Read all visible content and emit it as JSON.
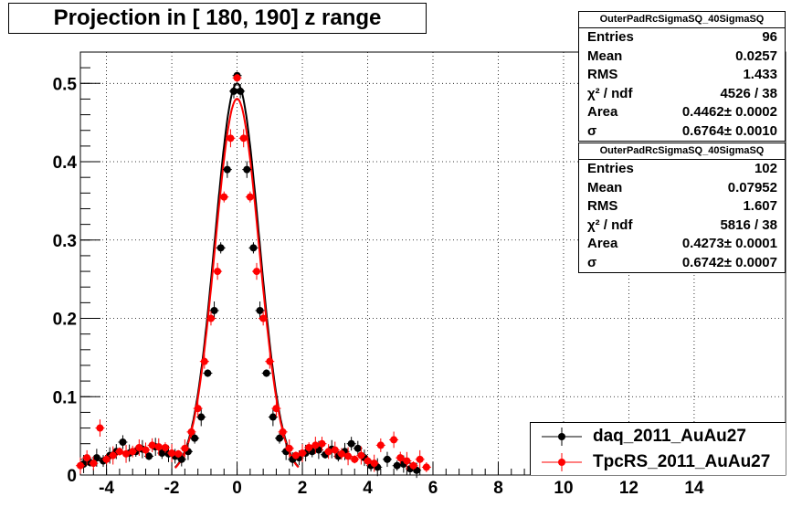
{
  "chart_data": {
    "type": "scatter",
    "title": "Projection in [ 180, 190] z range",
    "xlabel": "",
    "ylabel": "",
    "xlim": [
      -4.8,
      16.8
    ],
    "ylim": [
      0,
      0.54
    ],
    "x_ticks": [
      "-4",
      "-2",
      "0",
      "2",
      "4",
      "6",
      "8",
      "10",
      "12",
      "14"
    ],
    "y_ticks": [
      "0",
      "0.1",
      "0.2",
      "0.3",
      "0.4",
      "0.5"
    ],
    "grid": true,
    "legend_position": "bottom-right",
    "series": [
      {
        "name": "daq_2011_AuAu27",
        "color": "#000000",
        "marker": "circle",
        "fit": {
          "area": 0.4462,
          "sigma": 0.6764
        },
        "points": [
          [
            -4.7,
            0.014
          ],
          [
            -4.5,
            0.016
          ],
          [
            -4.3,
            0.022
          ],
          [
            -4.1,
            0.018
          ],
          [
            -3.9,
            0.025
          ],
          [
            -3.7,
            0.03
          ],
          [
            -3.5,
            0.042
          ],
          [
            -3.3,
            0.028
          ],
          [
            -3.1,
            0.03
          ],
          [
            -2.9,
            0.033
          ],
          [
            -2.7,
            0.024
          ],
          [
            -2.5,
            0.036
          ],
          [
            -2.3,
            0.028
          ],
          [
            -2.1,
            0.027
          ],
          [
            -1.9,
            0.024
          ],
          [
            -1.7,
            0.02
          ],
          [
            -1.5,
            0.03
          ],
          [
            -1.3,
            0.047
          ],
          [
            -1.1,
            0.074
          ],
          [
            -0.9,
            0.13
          ],
          [
            -0.7,
            0.21
          ],
          [
            -0.5,
            0.29
          ],
          [
            -0.3,
            0.39
          ],
          [
            -0.1,
            0.49
          ],
          [
            0.0,
            0.51
          ],
          [
            0.1,
            0.49
          ],
          [
            0.3,
            0.39
          ],
          [
            0.5,
            0.29
          ],
          [
            0.7,
            0.21
          ],
          [
            0.9,
            0.13
          ],
          [
            1.1,
            0.074
          ],
          [
            1.3,
            0.047
          ],
          [
            1.5,
            0.03
          ],
          [
            1.7,
            0.02
          ],
          [
            1.9,
            0.022
          ],
          [
            2.1,
            0.028
          ],
          [
            2.3,
            0.03
          ],
          [
            2.5,
            0.032
          ],
          [
            2.7,
            0.026
          ],
          [
            2.9,
            0.033
          ],
          [
            3.1,
            0.024
          ],
          [
            3.3,
            0.03
          ],
          [
            3.5,
            0.04
          ],
          [
            3.7,
            0.034
          ],
          [
            3.9,
            0.022
          ],
          [
            4.1,
            0.012
          ],
          [
            4.3,
            0.01
          ],
          [
            4.6,
            0.02
          ],
          [
            4.9,
            0.012
          ],
          [
            5.1,
            0.014
          ],
          [
            5.3,
            0.008
          ],
          [
            5.5,
            0.006
          ]
        ]
      },
      {
        "name": "TpcRS_2011_AuAu27",
        "color": "#ff0000",
        "marker": "circle",
        "fit": {
          "area": 0.4273,
          "sigma": 0.6742
        },
        "points": [
          [
            -4.8,
            0.012
          ],
          [
            -4.6,
            0.022
          ],
          [
            -4.4,
            0.015
          ],
          [
            -4.2,
            0.06
          ],
          [
            -4.0,
            0.02
          ],
          [
            -3.8,
            0.025
          ],
          [
            -3.6,
            0.03
          ],
          [
            -3.4,
            0.027
          ],
          [
            -3.2,
            0.03
          ],
          [
            -3.0,
            0.035
          ],
          [
            -2.8,
            0.032
          ],
          [
            -2.6,
            0.038
          ],
          [
            -2.4,
            0.036
          ],
          [
            -2.2,
            0.035
          ],
          [
            -2.0,
            0.028
          ],
          [
            -1.8,
            0.027
          ],
          [
            -1.6,
            0.034
          ],
          [
            -1.4,
            0.055
          ],
          [
            -1.2,
            0.085
          ],
          [
            -1.0,
            0.145
          ],
          [
            -0.8,
            0.2
          ],
          [
            -0.6,
            0.26
          ],
          [
            -0.4,
            0.355
          ],
          [
            -0.2,
            0.43
          ],
          [
            0.0,
            0.507
          ],
          [
            0.2,
            0.43
          ],
          [
            0.4,
            0.355
          ],
          [
            0.6,
            0.26
          ],
          [
            0.8,
            0.2
          ],
          [
            1.0,
            0.145
          ],
          [
            1.2,
            0.085
          ],
          [
            1.4,
            0.055
          ],
          [
            1.6,
            0.034
          ],
          [
            1.8,
            0.025
          ],
          [
            2.0,
            0.028
          ],
          [
            2.2,
            0.035
          ],
          [
            2.4,
            0.038
          ],
          [
            2.6,
            0.04
          ],
          [
            2.8,
            0.03
          ],
          [
            3.0,
            0.032
          ],
          [
            3.2,
            0.027
          ],
          [
            3.4,
            0.024
          ],
          [
            3.6,
            0.02
          ],
          [
            3.8,
            0.025
          ],
          [
            4.0,
            0.018
          ],
          [
            4.2,
            0.015
          ],
          [
            4.4,
            0.038
          ],
          [
            4.8,
            0.045
          ],
          [
            5.0,
            0.022
          ],
          [
            5.2,
            0.018
          ],
          [
            5.4,
            0.012
          ],
          [
            5.6,
            0.02
          ],
          [
            5.8,
            0.01
          ]
        ]
      }
    ]
  },
  "stats_boxes": [
    {
      "name": "OuterPadRcSigmaSQ_40SigmaSQ",
      "rows": [
        {
          "key": "Entries",
          "value": "96"
        },
        {
          "key": "Mean",
          "value": "0.0257"
        },
        {
          "key": "RMS",
          "value": "1.433"
        },
        {
          "key": "χ² / ndf",
          "value": "4526 / 38"
        },
        {
          "key": "Area",
          "value": "0.4462± 0.0002"
        },
        {
          "key": "σ",
          "value": "0.6764± 0.0010"
        }
      ]
    },
    {
      "name": "OuterPadRcSigmaSQ_40SigmaSQ",
      "rows": [
        {
          "key": "Entries",
          "value": "102"
        },
        {
          "key": "Mean",
          "value": "0.07952"
        },
        {
          "key": "RMS",
          "value": "1.607"
        },
        {
          "key": "χ² / ndf",
          "value": "5816 / 38"
        },
        {
          "key": "Area",
          "value": "0.4273± 0.0001"
        },
        {
          "key": "σ",
          "value": "0.6742± 0.0007"
        }
      ]
    }
  ]
}
